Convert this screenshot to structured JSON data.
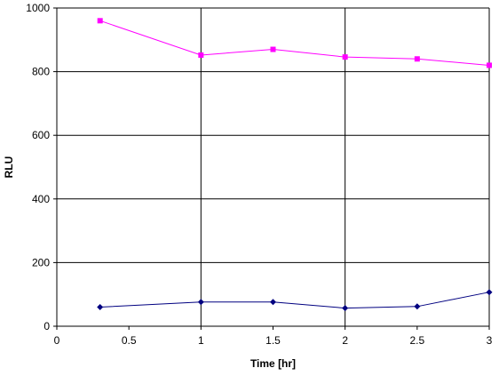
{
  "chart_data": {
    "type": "line",
    "title": "",
    "xlabel": "Time [hr]",
    "ylabel": "RLU",
    "xlim": [
      0,
      3
    ],
    "ylim": [
      0,
      1000
    ],
    "grid": true,
    "legend": "none",
    "x": [
      0.3,
      1,
      1.5,
      2,
      2.5,
      3
    ],
    "x_ticks": [
      "0",
      "0.5",
      "1",
      "1.5",
      "2",
      "2.5",
      "3"
    ],
    "y_ticks": [
      "0",
      "200",
      "400",
      "600",
      "800",
      "1000"
    ],
    "series": [
      {
        "color": "#ff00ff",
        "marker": "square",
        "values": [
          960,
          852,
          870,
          846,
          840,
          820
        ]
      },
      {
        "color": "#000080",
        "marker": "diamond",
        "values": [
          60,
          76,
          76,
          57,
          62,
          107
        ]
      }
    ]
  }
}
